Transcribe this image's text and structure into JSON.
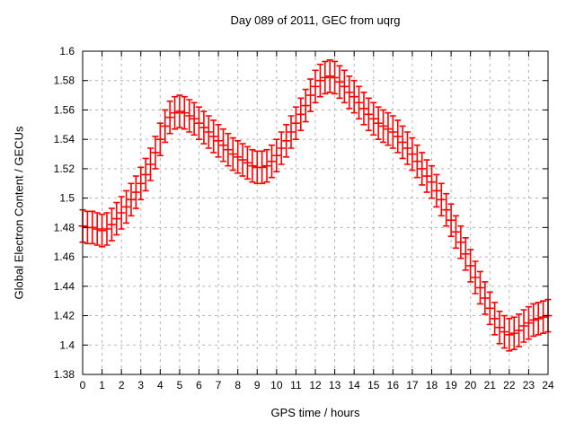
{
  "window": {
    "background": "#ffffff"
  },
  "colors": {
    "series": "#ff0000",
    "grid": "#b3b3b3",
    "axis": "#000000",
    "text": "#000000",
    "background": "#ffffff"
  },
  "chart_data": {
    "type": "scatter",
    "style": "yerrorbars",
    "title": "Day 089 of 2011, GEC from uqrg",
    "xlabel": "GPS time / hours",
    "ylabel": "Global Electron Content / GECUs",
    "xlim": [
      0,
      24
    ],
    "ylim": [
      1.38,
      1.6
    ],
    "grid": true,
    "legend": "none",
    "x_ticks": [
      0,
      1,
      2,
      3,
      4,
      5,
      6,
      7,
      8,
      9,
      10,
      11,
      12,
      13,
      14,
      15,
      16,
      17,
      18,
      19,
      20,
      21,
      22,
      23,
      24
    ],
    "x_tick_labels": [
      "0",
      "1",
      "2",
      "3",
      "4",
      "5",
      "6",
      "7",
      "8",
      "9",
      "10",
      "11",
      "12",
      "13",
      "14",
      "15",
      "16",
      "17",
      "18",
      "19",
      "20",
      "21",
      "22",
      "23",
      "24"
    ],
    "y_ticks": [
      1.38,
      1.4,
      1.42,
      1.44,
      1.46,
      1.48,
      1.5,
      1.52,
      1.54,
      1.56,
      1.58,
      1.6
    ],
    "y_tick_labels": [
      "1.38",
      "1.4",
      "1.42",
      "1.44",
      "1.46",
      "1.48",
      "1.5",
      "1.52",
      "1.54",
      "1.56",
      "1.58",
      "1.6"
    ],
    "series": [
      {
        "name": "GEC",
        "color": "#ff0000",
        "error_bar": 0.011,
        "x": [
          0,
          0.25,
          0.5,
          0.75,
          1,
          1.25,
          1.5,
          1.75,
          2,
          2.25,
          2.5,
          2.75,
          3,
          3.25,
          3.5,
          3.75,
          4,
          4.25,
          4.5,
          4.75,
          5,
          5.25,
          5.5,
          5.75,
          6,
          6.25,
          6.5,
          6.75,
          7,
          7.25,
          7.5,
          7.75,
          8,
          8.25,
          8.5,
          8.75,
          9,
          9.25,
          9.5,
          9.75,
          10,
          10.25,
          10.5,
          10.75,
          11,
          11.25,
          11.5,
          11.75,
          12,
          12.25,
          12.5,
          12.75,
          13,
          13.25,
          13.5,
          13.75,
          14,
          14.25,
          14.5,
          14.75,
          15,
          15.25,
          15.5,
          15.75,
          16,
          16.25,
          16.5,
          16.75,
          17,
          17.25,
          17.5,
          17.75,
          18,
          18.25,
          18.5,
          18.75,
          19,
          19.25,
          19.5,
          19.75,
          20,
          20.25,
          20.5,
          20.75,
          21,
          21.25,
          21.5,
          21.75,
          22,
          22.25,
          22.5,
          22.75,
          23,
          23.25,
          23.5,
          23.75,
          24
        ],
        "y": [
          1.481,
          1.48,
          1.48,
          1.479,
          1.478,
          1.479,
          1.482,
          1.486,
          1.49,
          1.494,
          1.499,
          1.504,
          1.51,
          1.516,
          1.523,
          1.531,
          1.54,
          1.549,
          1.555,
          1.558,
          1.559,
          1.558,
          1.556,
          1.554,
          1.551,
          1.548,
          1.545,
          1.542,
          1.539,
          1.536,
          1.533,
          1.53,
          1.528,
          1.526,
          1.524,
          1.522,
          1.521,
          1.521,
          1.522,
          1.525,
          1.529,
          1.534,
          1.539,
          1.545,
          1.551,
          1.557,
          1.563,
          1.57,
          1.576,
          1.58,
          1.582,
          1.583,
          1.582,
          1.579,
          1.576,
          1.572,
          1.569,
          1.565,
          1.561,
          1.557,
          1.554,
          1.551,
          1.549,
          1.547,
          1.545,
          1.542,
          1.538,
          1.534,
          1.53,
          1.525,
          1.52,
          1.515,
          1.511,
          1.505,
          1.499,
          1.492,
          1.485,
          1.477,
          1.47,
          1.462,
          1.454,
          1.446,
          1.439,
          1.432,
          1.425,
          1.418,
          1.412,
          1.409,
          1.407,
          1.408,
          1.41,
          1.413,
          1.415,
          1.417,
          1.418,
          1.419,
          1.42
        ]
      }
    ]
  }
}
